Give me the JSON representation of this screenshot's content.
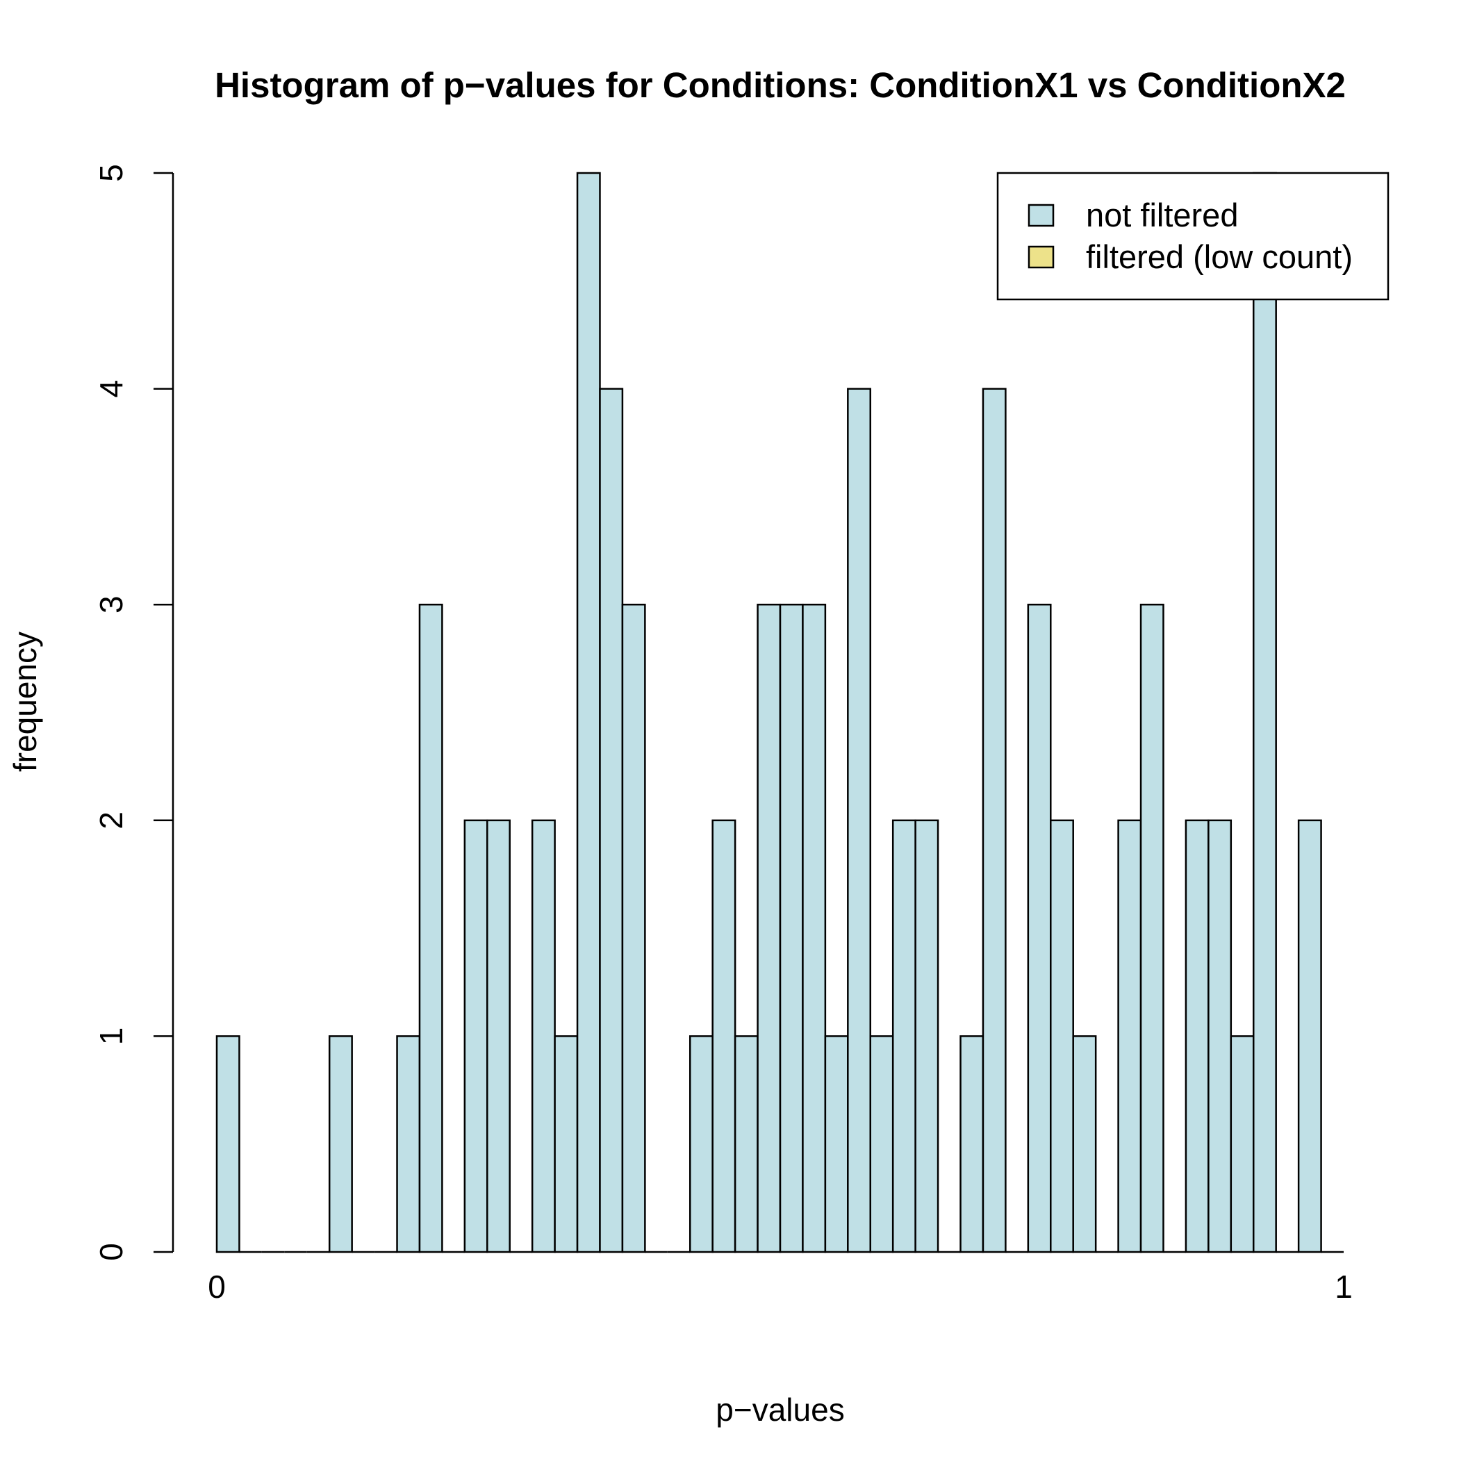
{
  "chart_data": {
    "type": "bar",
    "title": "Histogram of p−values for Conditions: ConditionX1 vs ConditionX2",
    "xlabel": "p−values",
    "ylabel": "frequency",
    "xlim": [
      0,
      1
    ],
    "ylim": [
      0,
      5
    ],
    "x_ticks": [
      {
        "value": 0,
        "label": "0"
      },
      {
        "value": 1,
        "label": "1"
      }
    ],
    "y_ticks": [
      {
        "value": 0,
        "label": "0"
      },
      {
        "value": 1,
        "label": "1"
      },
      {
        "value": 2,
        "label": "2"
      },
      {
        "value": 3,
        "label": "3"
      },
      {
        "value": 4,
        "label": "4"
      },
      {
        "value": 5,
        "label": "5"
      }
    ],
    "bin_width": 0.02,
    "series": [
      {
        "name": "not filtered",
        "color": "#c0e0e6",
        "values": [
          1,
          0,
          0,
          0,
          0,
          1,
          0,
          0,
          1,
          3,
          0,
          2,
          2,
          0,
          2,
          1,
          5,
          4,
          3,
          0,
          0,
          1,
          2,
          1,
          3,
          3,
          3,
          1,
          4,
          1,
          2,
          2,
          0,
          1,
          4,
          0,
          3,
          2,
          1,
          0,
          2,
          3,
          0,
          2,
          2,
          1,
          5,
          0,
          2,
          0
        ]
      },
      {
        "name": "filtered (low count)",
        "color": "#ede28a",
        "values": [
          0,
          0,
          0,
          0,
          0,
          0,
          0,
          0,
          0,
          0,
          0,
          0,
          0,
          0,
          0,
          0,
          0,
          0,
          0,
          0,
          0,
          0,
          0,
          0,
          0,
          0,
          0,
          0,
          0,
          0,
          0,
          0,
          0,
          0,
          0,
          0,
          0,
          0,
          0,
          0,
          0,
          0,
          0,
          0,
          0,
          0,
          0,
          0,
          0,
          0
        ]
      }
    ],
    "legend": {
      "position": "top-right",
      "entries": [
        {
          "label": "not filtered",
          "color": "#c0e0e6"
        },
        {
          "label": "filtered (low count)",
          "color": "#ede28a"
        }
      ]
    }
  }
}
